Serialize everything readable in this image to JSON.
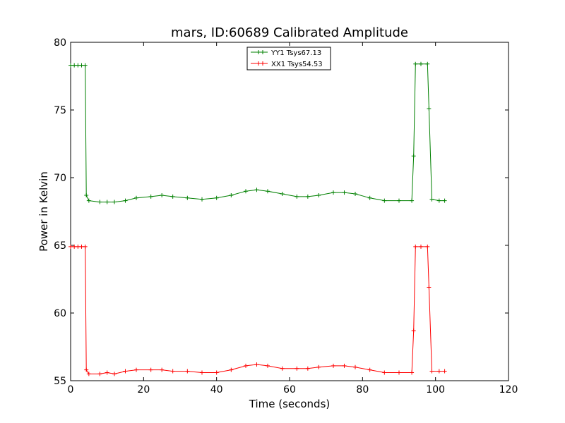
{
  "chart_data": {
    "type": "line",
    "title": "mars, ID:60689 Calibrated Amplitude",
    "xlabel": "Time (seconds)",
    "ylabel": "Power in Kelvin",
    "xlim": [
      0,
      120
    ],
    "ylim": [
      55,
      80
    ],
    "xticks": [
      "0",
      "20",
      "40",
      "60",
      "80",
      "100",
      "120"
    ],
    "yticks": [
      "55",
      "60",
      "65",
      "70",
      "75",
      "80"
    ],
    "grid": false,
    "legend_position": "top-center",
    "series": [
      {
        "name": "YY1 Tsys67.13",
        "color": "#008000",
        "marker": "+",
        "x": [
          0,
          1,
          2,
          3,
          4,
          4.3,
          5,
          8,
          10,
          12,
          15,
          18,
          22,
          25,
          28,
          32,
          36,
          40,
          44,
          48,
          51,
          54,
          58,
          62,
          65,
          68,
          72,
          75,
          78,
          82,
          86,
          90,
          93.5,
          94,
          94.5,
          96,
          97.8,
          98.2,
          99,
          101,
          102.5
        ],
        "y": [
          78.3,
          78.3,
          78.3,
          78.3,
          78.3,
          68.7,
          68.3,
          68.2,
          68.2,
          68.2,
          68.3,
          68.5,
          68.6,
          68.7,
          68.6,
          68.5,
          68.4,
          68.5,
          68.7,
          69.0,
          69.1,
          69.0,
          68.8,
          68.6,
          68.6,
          68.7,
          68.9,
          68.9,
          68.8,
          68.5,
          68.3,
          68.3,
          68.3,
          71.6,
          78.4,
          78.4,
          78.4,
          75.1,
          68.4,
          68.3,
          68.3
        ]
      },
      {
        "name": "XX1 Tsys54.53",
        "color": "#ff0000",
        "marker": "+",
        "x": [
          0,
          1,
          2,
          3,
          4,
          4.3,
          5,
          8,
          10,
          12,
          15,
          18,
          22,
          25,
          28,
          32,
          36,
          40,
          44,
          48,
          51,
          54,
          58,
          62,
          65,
          68,
          72,
          75,
          78,
          82,
          86,
          90,
          93.5,
          94,
          94.5,
          96,
          97.8,
          98.2,
          99,
          101,
          102.5
        ],
        "y": [
          64.9,
          64.9,
          64.9,
          64.9,
          64.9,
          55.8,
          55.5,
          55.5,
          55.6,
          55.5,
          55.7,
          55.8,
          55.8,
          55.8,
          55.7,
          55.7,
          55.6,
          55.6,
          55.8,
          56.1,
          56.2,
          56.1,
          55.9,
          55.9,
          55.9,
          56.0,
          56.1,
          56.1,
          56.0,
          55.8,
          55.6,
          55.6,
          55.6,
          58.7,
          64.9,
          64.9,
          64.9,
          61.9,
          55.7,
          55.7,
          55.7
        ]
      }
    ]
  }
}
